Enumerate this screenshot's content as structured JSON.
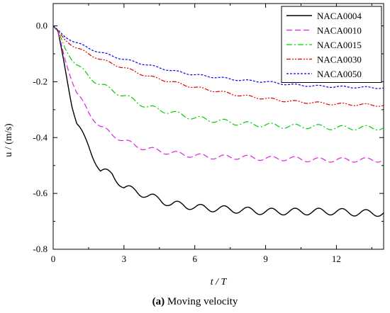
{
  "caption": {
    "label": "(a)",
    "text": "Moving velocity"
  },
  "chart_data": {
    "type": "line",
    "title": "",
    "xlabel": "t / T",
    "ylabel": "u / (m/s)",
    "xlim": [
      0,
      14
    ],
    "ylim": [
      -0.8,
      0.08
    ],
    "xticks": [
      0,
      3,
      6,
      9,
      12
    ],
    "yticks": [
      0.0,
      -0.2,
      -0.4,
      -0.6,
      -0.8
    ],
    "xtick_labels": [
      "0",
      "3",
      "6",
      "9",
      "12"
    ],
    "ytick_labels": [
      "0.0",
      "-0.2",
      "-0.4",
      "-0.6",
      "-0.8"
    ],
    "grid": false,
    "legend_position": "top-right",
    "series": [
      {
        "name": "NACA0004",
        "color": "#000000",
        "dash": "solid",
        "x": [
          0,
          0.2,
          0.5,
          0.8,
          1.0,
          1.3,
          1.5,
          2.0,
          2.5,
          3.0,
          3.5,
          4.0,
          4.5,
          5.0,
          5.5,
          6.0,
          7.0,
          8.0,
          9.0,
          10.0,
          11.0,
          12.0,
          13.0,
          14.0
        ],
        "y": [
          0.0,
          -0.02,
          -0.15,
          -0.28,
          -0.35,
          -0.4,
          -0.43,
          -0.52,
          -0.53,
          -0.58,
          -0.59,
          -0.61,
          -0.62,
          -0.64,
          -0.64,
          -0.65,
          -0.655,
          -0.66,
          -0.665,
          -0.665,
          -0.665,
          -0.665,
          -0.67,
          -0.67
        ],
        "osc_amp": 0.012
      },
      {
        "name": "NACA0010",
        "color": "#e020e0",
        "dash": "8,4",
        "x": [
          0,
          0.2,
          0.5,
          1.0,
          1.5,
          2.0,
          2.5,
          3.0,
          3.5,
          4.0,
          5.0,
          6.0,
          7.0,
          8.0,
          9.0,
          10.0,
          11.0,
          12.0,
          13.0,
          14.0
        ],
        "y": [
          0.0,
          -0.02,
          -0.12,
          -0.24,
          -0.31,
          -0.36,
          -0.39,
          -0.41,
          -0.43,
          -0.44,
          -0.455,
          -0.465,
          -0.47,
          -0.47,
          -0.475,
          -0.475,
          -0.48,
          -0.48,
          -0.48,
          -0.48
        ],
        "osc_amp": 0.008
      },
      {
        "name": "NACA0015",
        "color": "#00cc00",
        "dash": "8,3,2,3",
        "x": [
          0,
          0.2,
          0.5,
          1.0,
          1.5,
          2.0,
          2.5,
          3.0,
          4.0,
          5.0,
          6.0,
          7.0,
          8.0,
          9.0,
          10.0,
          11.0,
          12.0,
          13.0,
          14.0
        ],
        "y": [
          0.0,
          -0.02,
          -0.08,
          -0.14,
          -0.18,
          -0.21,
          -0.23,
          -0.25,
          -0.29,
          -0.31,
          -0.33,
          -0.34,
          -0.35,
          -0.355,
          -0.36,
          -0.36,
          -0.365,
          -0.365,
          -0.365
        ],
        "osc_amp": 0.008
      },
      {
        "name": "NACA0030",
        "color": "#e00000",
        "dash": "6,2,2,2,2,2",
        "x": [
          0,
          0.2,
          0.5,
          1.0,
          1.5,
          2.0,
          3.0,
          4.0,
          5.0,
          6.0,
          7.0,
          8.0,
          9.0,
          10.0,
          11.0,
          12.0,
          13.0,
          14.0
        ],
        "y": [
          0.0,
          -0.02,
          -0.05,
          -0.08,
          -0.1,
          -0.12,
          -0.15,
          -0.18,
          -0.2,
          -0.22,
          -0.235,
          -0.25,
          -0.26,
          -0.27,
          -0.275,
          -0.28,
          -0.282,
          -0.285
        ],
        "osc_amp": 0.004
      },
      {
        "name": "NACA0050",
        "color": "#0000ee",
        "dash": "3,2",
        "x": [
          0,
          0.2,
          0.5,
          1.0,
          1.5,
          2.0,
          3.0,
          4.0,
          5.0,
          6.0,
          7.0,
          8.0,
          9.0,
          10.0,
          11.0,
          12.0,
          13.0,
          14.0
        ],
        "y": [
          0.0,
          -0.015,
          -0.04,
          -0.06,
          -0.08,
          -0.095,
          -0.12,
          -0.14,
          -0.16,
          -0.175,
          -0.185,
          -0.195,
          -0.2,
          -0.21,
          -0.215,
          -0.218,
          -0.22,
          -0.222
        ],
        "osc_amp": 0.003
      }
    ]
  }
}
